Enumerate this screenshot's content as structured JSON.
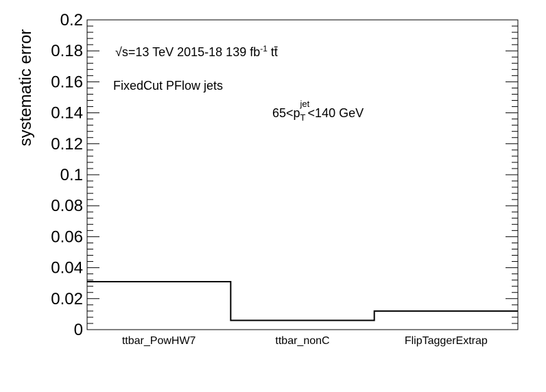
{
  "chart_data": {
    "type": "bar",
    "style": "step-histogram",
    "categories": [
      "ttbar_PowHW7",
      "ttbar_nonC",
      "FlipTaggerExtrap"
    ],
    "values": [
      0.031,
      0.006,
      0.012
    ],
    "ylabel": "systematic error",
    "xlabel": "",
    "ylim": [
      0,
      0.2
    ],
    "y_ticks": [
      "0",
      "0.02",
      "0.04",
      "0.06",
      "0.08",
      "0.1",
      "0.12",
      "0.14",
      "0.16",
      "0.18",
      "0.2"
    ],
    "grid": false,
    "annotations": {
      "energy_sqrt": "√s",
      "energy_rest": "=13 TeV  2015-18  139 fb",
      "lumi_exp": "-1",
      "process": "tt̄",
      "jets": "FixedCut PFlow jets",
      "pt_pre": "65<p",
      "pt_sup": "jet",
      "pt_sub": "T",
      "pt_post": "<140 GeV"
    }
  }
}
